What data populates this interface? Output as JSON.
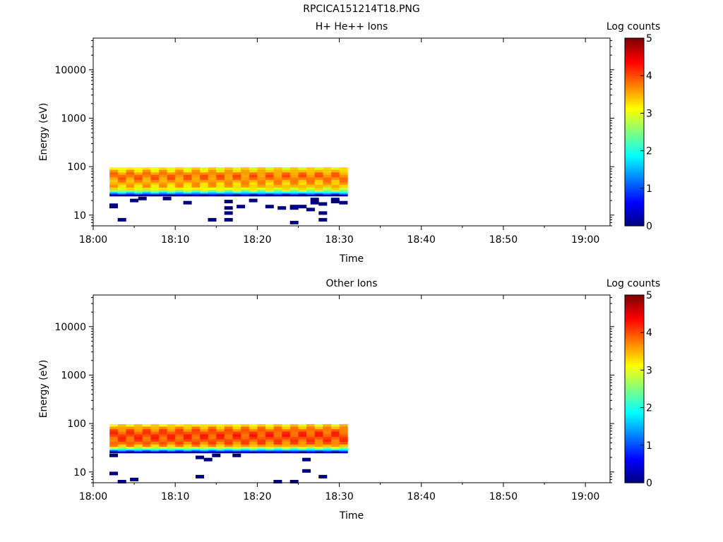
{
  "figure_title": "RPCICA151214T18.PNG",
  "chart_data": [
    {
      "type": "heatmap",
      "title": "H+ He++ Ions",
      "xlabel": "Time",
      "ylabel": "Energy (eV)",
      "x_ticks": [
        "18:00",
        "18:10",
        "18:20",
        "18:30",
        "18:40",
        "18:50",
        "19:00"
      ],
      "xlim": [
        "18:00",
        "19:03"
      ],
      "y_scale": "log",
      "y_ticks": [
        10,
        100,
        1000,
        10000
      ],
      "y_tick_labels": [
        "10",
        "100",
        "1000",
        "10000"
      ],
      "ylim": [
        6,
        45000
      ],
      "grid": false,
      "colorbar": {
        "label": "Log counts",
        "range": [
          0,
          5
        ],
        "ticks": [
          0,
          1,
          2,
          3,
          4,
          5
        ],
        "tick_labels": [
          "0",
          "1",
          "2",
          "3",
          "4",
          "5"
        ],
        "colormap": [
          "#00007f",
          "#0000ff",
          "#007fff",
          "#00ffff",
          "#7fff7f",
          "#ffff00",
          "#ff7f00",
          "#ff0000",
          "#7f0000"
        ]
      },
      "data_time_range": [
        "18:02",
        "18:31"
      ],
      "energy_bins": [
        {
          "e_low": 86,
          "e_high": 97,
          "value": 3.15
        },
        {
          "e_low": 76,
          "e_high": 86,
          "value": 3.45
        },
        {
          "e_low": 68,
          "e_high": 76,
          "value": 3.7
        },
        {
          "e_low": 60,
          "e_high": 68,
          "value": 3.8
        },
        {
          "e_low": 53,
          "e_high": 60,
          "value": 3.75
        },
        {
          "e_low": 47,
          "e_high": 53,
          "value": 3.6
        },
        {
          "e_low": 42,
          "e_high": 47,
          "value": 3.5
        },
        {
          "e_low": 37,
          "e_high": 42,
          "value": 3.45
        },
        {
          "e_low": 33,
          "e_high": 37,
          "value": 3.15
        },
        {
          "e_low": 30,
          "e_high": 33,
          "value": 2.6
        },
        {
          "e_low": 28,
          "e_high": 30,
          "value": 1.9
        },
        {
          "e_low": 26.5,
          "e_high": 28,
          "value": 1.1
        },
        {
          "e_low": 24.5,
          "e_high": 26.5,
          "value": 0.2
        }
      ],
      "sparse_low_counts": [
        {
          "time": "18:02.5",
          "energy": 16
        },
        {
          "time": "18:02.5",
          "energy": 15
        },
        {
          "time": "18:03.5",
          "energy": 8
        },
        {
          "time": "18:05",
          "energy": 20
        },
        {
          "time": "18:06",
          "energy": 22
        },
        {
          "time": "18:09",
          "energy": 22
        },
        {
          "time": "18:11.5",
          "energy": 18
        },
        {
          "time": "18:14.5",
          "energy": 8
        },
        {
          "time": "18:16.5",
          "energy": 14
        },
        {
          "time": "18:16.5",
          "energy": 11
        },
        {
          "time": "18:16.5",
          "energy": 8
        },
        {
          "time": "18:16.5",
          "energy": 19
        },
        {
          "time": "18:18",
          "energy": 15
        },
        {
          "time": "18:19.5",
          "energy": 20
        },
        {
          "time": "18:21.5",
          "energy": 15
        },
        {
          "time": "18:23",
          "energy": 14
        },
        {
          "time": "18:24.5",
          "energy": 15
        },
        {
          "time": "18:24.5",
          "energy": 14
        },
        {
          "time": "18:24.5",
          "energy": 7
        },
        {
          "time": "18:25.5",
          "energy": 15
        },
        {
          "time": "18:26.5",
          "energy": 13
        },
        {
          "time": "18:27",
          "energy": 18
        },
        {
          "time": "18:27",
          "energy": 21
        },
        {
          "time": "18:28",
          "energy": 17
        },
        {
          "time": "18:28",
          "energy": 11
        },
        {
          "time": "18:28",
          "energy": 8
        },
        {
          "time": "18:29.5",
          "energy": 21
        },
        {
          "time": "18:29.5",
          "energy": 19
        },
        {
          "time": "18:30.5",
          "energy": 18
        }
      ]
    },
    {
      "type": "heatmap",
      "title": "Other Ions",
      "xlabel": "Time",
      "ylabel": "Energy (eV)",
      "x_ticks": [
        "18:00",
        "18:10",
        "18:20",
        "18:30",
        "18:40",
        "18:50",
        "19:00"
      ],
      "xlim": [
        "18:00",
        "19:03"
      ],
      "y_scale": "log",
      "y_ticks": [
        10,
        100,
        1000,
        10000
      ],
      "y_tick_labels": [
        "10",
        "100",
        "1000",
        "10000"
      ],
      "ylim": [
        6,
        45000
      ],
      "grid": false,
      "colorbar": {
        "label": "Log counts",
        "range": [
          0,
          5
        ],
        "ticks": [
          0,
          1,
          2,
          3,
          4,
          5
        ],
        "tick_labels": [
          "0",
          "1",
          "2",
          "3",
          "4",
          "5"
        ],
        "colormap": [
          "#00007f",
          "#0000ff",
          "#007fff",
          "#00ffff",
          "#7fff7f",
          "#ffff00",
          "#ff7f00",
          "#ff0000",
          "#7f0000"
        ]
      },
      "data_time_range": [
        "18:02",
        "18:31"
      ],
      "energy_bins": [
        {
          "e_low": 86,
          "e_high": 97,
          "value": 3.25
        },
        {
          "e_low": 76,
          "e_high": 86,
          "value": 3.6
        },
        {
          "e_low": 68,
          "e_high": 76,
          "value": 3.85
        },
        {
          "e_low": 60,
          "e_high": 68,
          "value": 4.0
        },
        {
          "e_low": 53,
          "e_high": 60,
          "value": 4.05
        },
        {
          "e_low": 47,
          "e_high": 53,
          "value": 4.0
        },
        {
          "e_low": 42,
          "e_high": 47,
          "value": 3.95
        },
        {
          "e_low": 37,
          "e_high": 42,
          "value": 3.85
        },
        {
          "e_low": 33,
          "e_high": 37,
          "value": 3.55
        },
        {
          "e_low": 30,
          "e_high": 33,
          "value": 2.9
        },
        {
          "e_low": 28,
          "e_high": 30,
          "value": 2.1
        },
        {
          "e_low": 26.5,
          "e_high": 28,
          "value": 1.2
        },
        {
          "e_low": 24.5,
          "e_high": 26.5,
          "value": 0.3
        }
      ],
      "sparse_low_counts": [
        {
          "time": "18:02.5",
          "energy": 22
        },
        {
          "time": "18:02.5",
          "energy": 9.3
        },
        {
          "time": "18:03.5",
          "energy": 6.3
        },
        {
          "time": "18:05",
          "energy": 7
        },
        {
          "time": "18:13",
          "energy": 20
        },
        {
          "time": "18:13",
          "energy": 8
        },
        {
          "time": "18:14",
          "energy": 18
        },
        {
          "time": "18:15",
          "energy": 22
        },
        {
          "time": "18:17.5",
          "energy": 22
        },
        {
          "time": "18:22.5",
          "energy": 6.3
        },
        {
          "time": "18:24.5",
          "energy": 6.3
        },
        {
          "time": "18:26",
          "energy": 18
        },
        {
          "time": "18:26",
          "energy": 10.5
        },
        {
          "time": "18:28",
          "energy": 8
        }
      ]
    }
  ]
}
